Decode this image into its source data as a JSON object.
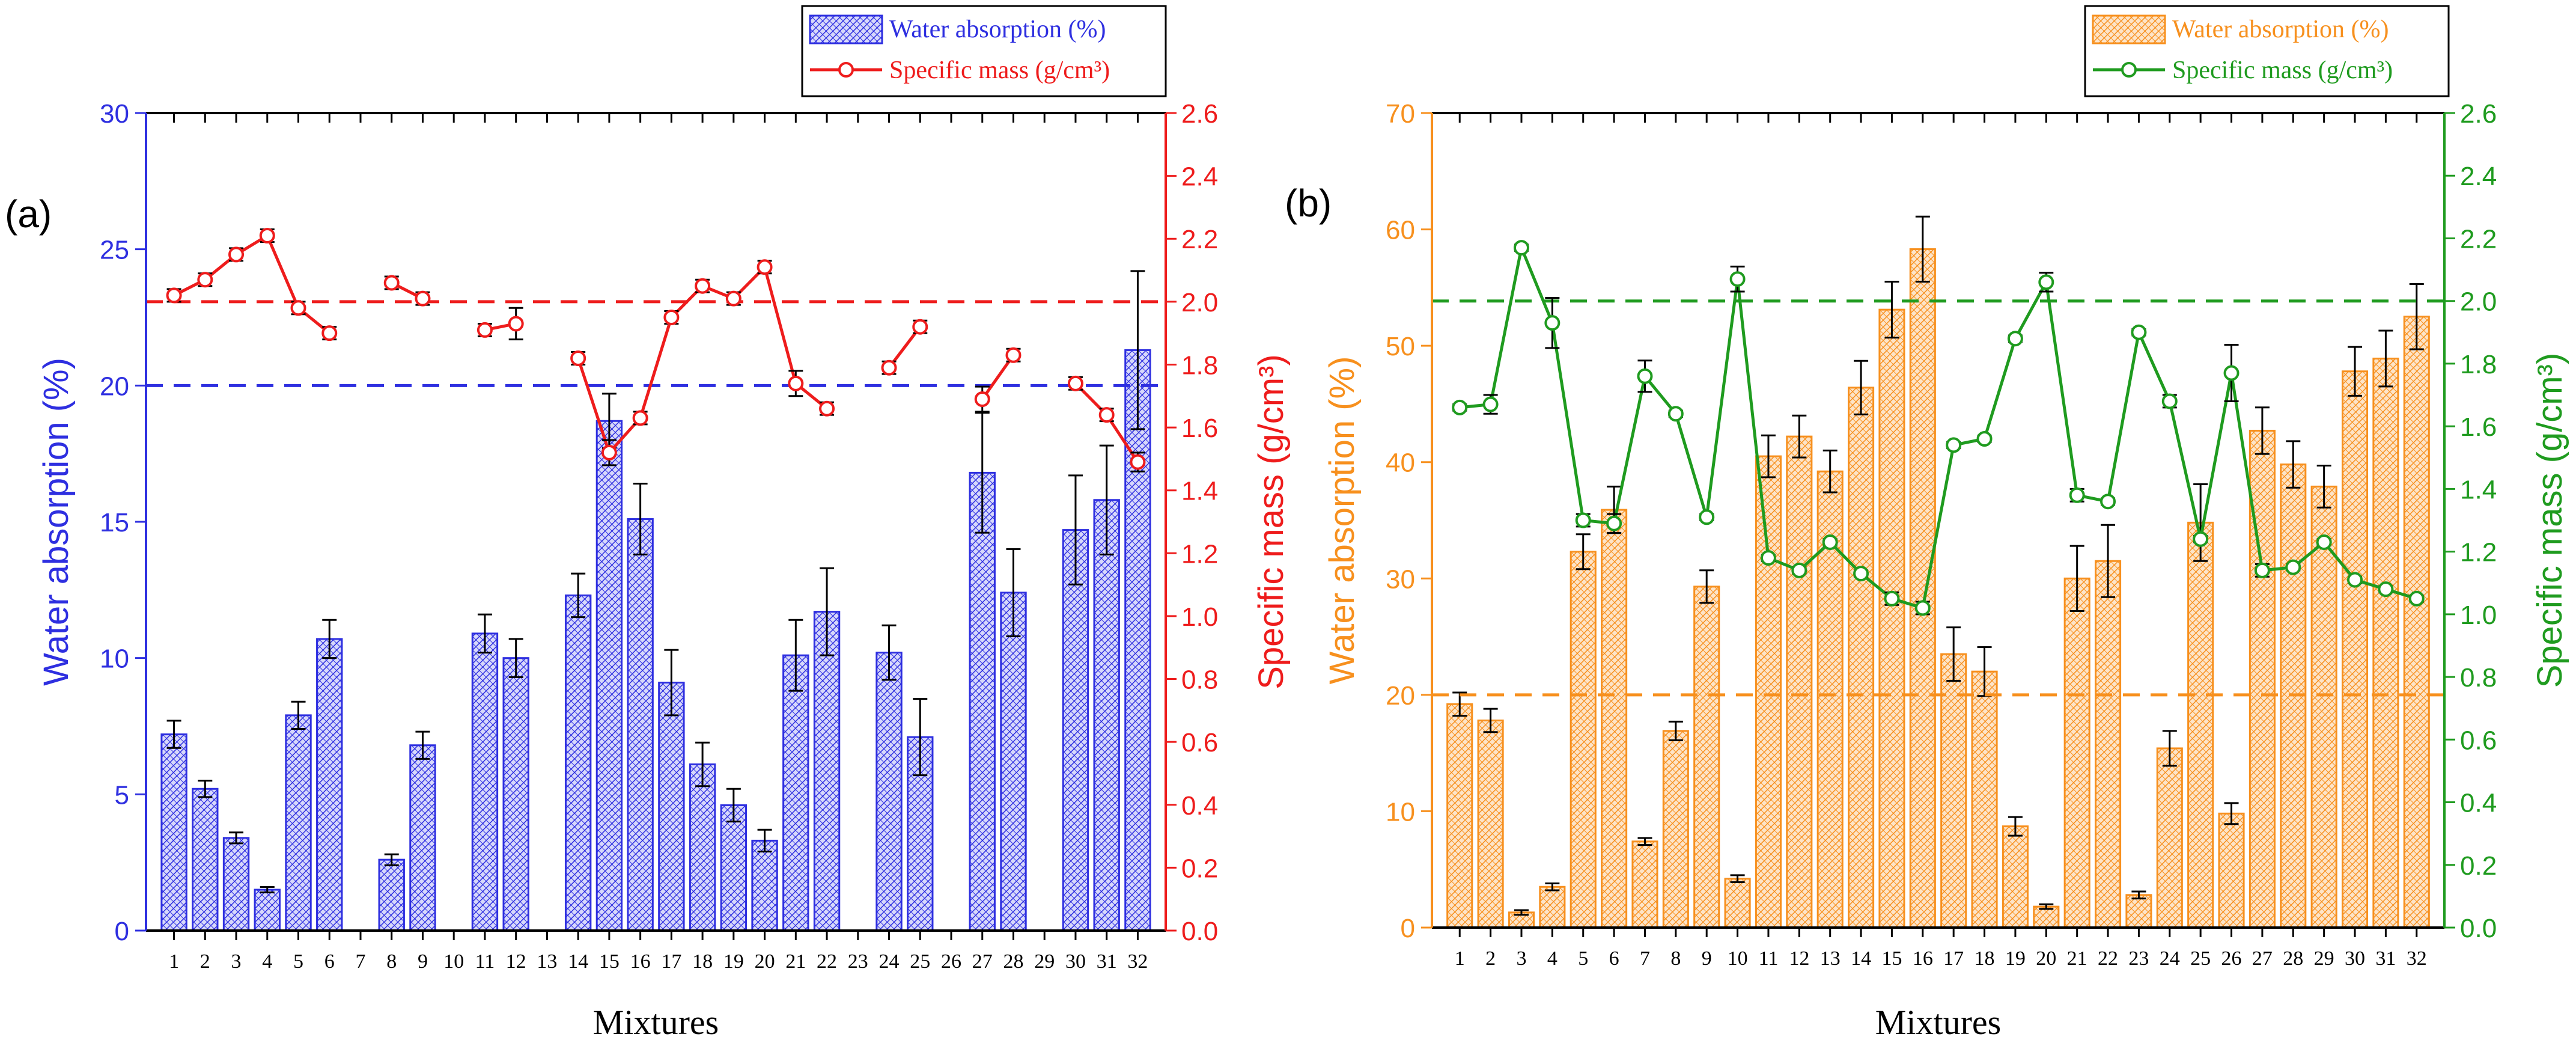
{
  "figure_labels": {
    "a": "(a)",
    "b": "(b)"
  },
  "chart_data": [
    {
      "type": "bar",
      "panel": "(a)",
      "categories": [
        "1",
        "2",
        "3",
        "4",
        "5",
        "6",
        "7",
        "8",
        "9",
        "10",
        "11",
        "12",
        "13",
        "14",
        "15",
        "16",
        "17",
        "18",
        "19",
        "20",
        "21",
        "22",
        "23",
        "24",
        "25",
        "26",
        "27",
        "28",
        "29",
        "30",
        "31",
        "32"
      ],
      "xlabel": "Mixtures",
      "ylabel": "Water absorption (%)",
      "y2label": "Specific mass (g/cm³)",
      "ylim": [
        0,
        30
      ],
      "y2lim": [
        0,
        2.6
      ],
      "yticks": [
        0,
        5,
        10,
        15,
        20,
        25,
        30
      ],
      "y2ticks": [
        "0.0",
        "0.2",
        "0.4",
        "0.6",
        "0.8",
        "1.0",
        "1.2",
        "1.4",
        "1.6",
        "1.8",
        "2.0",
        "2.2",
        "2.4",
        "2.6"
      ],
      "reference_lines": {
        "water_absorption": 20,
        "specific_mass": 2.0
      },
      "legend_position": "top-center",
      "colors": {
        "bar": "#2e2fe0",
        "bar_fill": "#7b7ff0",
        "line": "#ee1c1c",
        "left_axis": "#2e2fe0",
        "right_axis": "#ee1c1c"
      },
      "series": [
        {
          "name": "Water absorption (%)",
          "kind": "bar",
          "values": [
            7.2,
            5.2,
            3.4,
            1.5,
            7.9,
            10.7,
            null,
            2.6,
            6.8,
            null,
            10.9,
            10.0,
            null,
            12.3,
            18.7,
            15.1,
            9.1,
            6.1,
            4.6,
            3.3,
            10.1,
            11.7,
            null,
            10.2,
            7.1,
            null,
            16.8,
            12.4,
            null,
            14.7,
            15.8,
            21.3
          ],
          "errors": [
            0.5,
            0.3,
            0.2,
            0.1,
            0.5,
            0.7,
            null,
            0.2,
            0.5,
            null,
            0.7,
            0.7,
            null,
            0.8,
            1.0,
            1.3,
            1.2,
            0.8,
            0.6,
            0.4,
            1.3,
            1.6,
            null,
            1.0,
            1.4,
            null,
            2.2,
            1.6,
            null,
            2.0,
            2.0,
            2.9
          ]
        },
        {
          "name": "Specific mass (g/cm³)",
          "kind": "line",
          "values": [
            2.02,
            2.07,
            2.15,
            2.21,
            1.98,
            1.9,
            null,
            2.06,
            2.01,
            null,
            1.91,
            1.93,
            null,
            1.82,
            1.52,
            1.63,
            1.95,
            2.05,
            2.01,
            2.11,
            1.74,
            1.66,
            null,
            1.79,
            1.92,
            null,
            1.69,
            1.83,
            null,
            1.74,
            1.64,
            1.49
          ],
          "errors": [
            0.02,
            0.02,
            0.02,
            0.02,
            0.02,
            0.02,
            null,
            0.02,
            0.02,
            null,
            0.02,
            0.05,
            null,
            0.02,
            0.04,
            0.02,
            0.02,
            0.02,
            0.02,
            0.02,
            0.04,
            0.02,
            null,
            0.02,
            0.02,
            null,
            0.04,
            0.02,
            null,
            0.02,
            0.02,
            0.03
          ]
        }
      ]
    },
    {
      "type": "bar",
      "panel": "(b)",
      "categories": [
        "1",
        "2",
        "3",
        "4",
        "5",
        "6",
        "7",
        "8",
        "9",
        "10",
        "11",
        "12",
        "13",
        "14",
        "15",
        "16",
        "17",
        "18",
        "19",
        "20",
        "21",
        "22",
        "23",
        "24",
        "25",
        "26",
        "27",
        "28",
        "29",
        "30",
        "31",
        "32"
      ],
      "xlabel": "Mixtures",
      "ylabel": "Water absorption (%)",
      "y2label": "Specific mass (g/cm³)",
      "ylim": [
        0,
        70
      ],
      "y2lim": [
        0,
        2.6
      ],
      "yticks": [
        0,
        10,
        20,
        30,
        40,
        50,
        60,
        70
      ],
      "y2ticks": [
        "0.0",
        "0.2",
        "0.4",
        "0.6",
        "0.8",
        "1.0",
        "1.2",
        "1.4",
        "1.6",
        "1.8",
        "2.0",
        "2.2",
        "2.4",
        "2.6"
      ],
      "reference_lines": {
        "water_absorption": 20,
        "specific_mass": 2.0
      },
      "legend_position": "top-right",
      "colors": {
        "bar": "#f7901e",
        "bar_fill": "#fbc48a",
        "line": "#1f9b1f",
        "left_axis": "#f7901e",
        "right_axis": "#1f9b1f"
      },
      "series": [
        {
          "name": "Water absorption (%)",
          "kind": "bar",
          "values": [
            19.2,
            17.8,
            1.3,
            3.5,
            32.3,
            35.9,
            7.4,
            16.9,
            29.3,
            4.2,
            40.5,
            42.2,
            39.2,
            46.4,
            53.1,
            58.3,
            23.5,
            22.0,
            8.7,
            1.8,
            30.0,
            31.5,
            2.8,
            15.4,
            34.8,
            9.8,
            42.7,
            39.8,
            37.9,
            47.8,
            48.9,
            52.5
          ],
          "errors": [
            1.0,
            1.0,
            0.2,
            0.3,
            1.5,
            2.0,
            0.3,
            0.8,
            1.4,
            0.3,
            1.8,
            1.8,
            1.8,
            2.3,
            2.4,
            2.8,
            2.3,
            2.1,
            0.8,
            0.2,
            2.8,
            3.1,
            0.3,
            1.5,
            3.3,
            0.9,
            2.0,
            2.0,
            1.8,
            2.1,
            2.4,
            2.8
          ]
        },
        {
          "name": "Specific mass (g/cm³)",
          "kind": "line",
          "values": [
            1.66,
            1.67,
            2.17,
            1.93,
            1.3,
            1.29,
            1.76,
            1.64,
            1.31,
            2.07,
            1.18,
            1.14,
            1.23,
            1.13,
            1.05,
            1.02,
            1.54,
            1.56,
            1.88,
            2.06,
            1.38,
            1.36,
            1.9,
            1.68,
            1.24,
            1.77,
            1.14,
            1.15,
            1.23,
            1.11,
            1.08,
            1.05
          ],
          "errors": [
            0.01,
            0.03,
            0.01,
            0.08,
            0.02,
            0.03,
            0.05,
            0.01,
            0.01,
            0.04,
            0.01,
            0.01,
            0.01,
            0.01,
            0.02,
            0.02,
            0.01,
            0.01,
            0.01,
            0.03,
            0.02,
            0.01,
            0.01,
            0.02,
            0.01,
            0.09,
            0.02,
            0.01,
            0.01,
            0.01,
            0.01,
            0.01
          ]
        }
      ]
    }
  ]
}
